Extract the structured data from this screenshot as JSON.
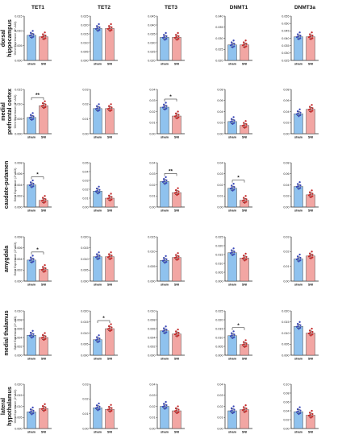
{
  "colors": {
    "sham": "#8fc2ee",
    "sni": "#f2a6a3",
    "sham_dot": "#3a48b8",
    "sni_dot": "#c42a2a",
    "axis": "#222222"
  },
  "figure": {
    "genes": [
      "TET1",
      "TET2",
      "TET3",
      "DNMT1",
      "DNMT3a"
    ],
    "regions": [
      {
        "lines": [
          "dorsal",
          "hippocampus"
        ],
        "ylabel": "Gene Expression (2^-ΔCt)"
      },
      {
        "lines": [
          "medial",
          "prefrontal cortex"
        ],
        "ylabel": "Gene Expression (2^-ΔCt)"
      },
      {
        "lines": [
          "caudate-putamen"
        ],
        "ylabel": "Gene Expression (2^-ΔCt)"
      },
      {
        "lines": [
          "amygdala"
        ],
        "ylabel": "Gene Expression (2^-ΔCt)"
      },
      {
        "lines": [
          "medial thalamus"
        ],
        "ylabel": "Gene Expression (2^-ΔCt)"
      },
      {
        "lines": [
          "lateral",
          "hypothalamus"
        ],
        "ylabel": "Gene Expression (2^-ΔCt)"
      }
    ],
    "groups": [
      "sham",
      "SNI"
    ]
  },
  "chart_data": [
    {
      "type": "bar",
      "region": "dorsal hippocampus",
      "gene": "TET1",
      "categories": [
        "sham",
        "SNI"
      ],
      "values": [
        0.0085,
        0.008
      ],
      "ylim": [
        0,
        0.015
      ],
      "yticks": [
        "0.000",
        "0.005",
        "0.010",
        "0.015"
      ]
    },
    {
      "type": "bar",
      "region": "dorsal hippocampus",
      "gene": "TET2",
      "categories": [
        "sham",
        "SNI"
      ],
      "values": [
        0.018,
        0.018
      ],
      "ylim": [
        0,
        0.025
      ],
      "yticks": [
        "0.000",
        "0.005",
        "0.010",
        "0.015",
        "0.020",
        "0.025"
      ]
    },
    {
      "type": "bar",
      "region": "dorsal hippocampus",
      "gene": "TET3",
      "categories": [
        "sham",
        "SNI"
      ],
      "values": [
        0.033,
        0.033
      ],
      "ylim": [
        0.02,
        0.045
      ],
      "yticks": [
        "0.020",
        "0.025",
        "0.030",
        "0.035",
        "0.040",
        "0.045"
      ]
    },
    {
      "type": "bar",
      "region": "dorsal hippocampus",
      "gene": "DNMT1",
      "categories": [
        "sham",
        "SNI"
      ],
      "values": [
        0.027,
        0.027
      ],
      "ylim": [
        0.02,
        0.04
      ],
      "yticks": [
        "0.020",
        "0.025",
        "0.030",
        "0.035",
        "0.040"
      ]
    },
    {
      "type": "bar",
      "region": "dorsal hippocampus",
      "gene": "DNMT3a",
      "categories": [
        "sham",
        "SNI"
      ],
      "values": [
        0.041,
        0.041
      ],
      "ylim": [
        0.025,
        0.055
      ],
      "yticks": [
        "0.025",
        "0.030",
        "0.035",
        "0.040",
        "0.045",
        "0.050",
        "0.055"
      ]
    },
    {
      "type": "bar",
      "region": "medial prefrontal cortex",
      "gene": "TET1",
      "categories": [
        "sham",
        "SNI"
      ],
      "values": [
        0.0055,
        0.0095
      ],
      "ylim": [
        0,
        0.015
      ],
      "yticks": [
        "0.000",
        "0.005",
        "0.010",
        "0.015"
      ],
      "sig": "**"
    },
    {
      "type": "bar",
      "region": "medial prefrontal cortex",
      "gene": "TET2",
      "categories": [
        "sham",
        "SNI"
      ],
      "values": [
        0.017,
        0.017
      ],
      "ylim": [
        0,
        0.03
      ],
      "yticks": [
        "0.00",
        "0.01",
        "0.02",
        "0.03"
      ]
    },
    {
      "type": "bar",
      "region": "medial prefrontal cortex",
      "gene": "TET3",
      "categories": [
        "sham",
        "SNI"
      ],
      "values": [
        0.024,
        0.016
      ],
      "ylim": [
        0,
        0.04
      ],
      "yticks": [
        "0.00",
        "0.01",
        "0.02",
        "0.03",
        "0.04"
      ],
      "sig": "*"
    },
    {
      "type": "bar",
      "region": "medial prefrontal cortex",
      "gene": "DNMT1",
      "categories": [
        "sham",
        "SNI"
      ],
      "values": [
        0.022,
        0.015
      ],
      "ylim": [
        0,
        0.08
      ],
      "yticks": [
        "0.00",
        "0.02",
        "0.04",
        "0.06",
        "0.08"
      ]
    },
    {
      "type": "bar",
      "region": "medial prefrontal cortex",
      "gene": "DNMT3a",
      "categories": [
        "sham",
        "SNI"
      ],
      "values": [
        0.036,
        0.044
      ],
      "ylim": [
        0,
        0.08
      ],
      "yticks": [
        "0.00",
        "0.02",
        "0.04",
        "0.06",
        "0.08"
      ]
    },
    {
      "type": "bar",
      "region": "caudate-putamen",
      "gene": "TET1",
      "categories": [
        "sham",
        "SNI"
      ],
      "values": [
        0.004,
        0.0012
      ],
      "ylim": [
        0,
        0.008
      ],
      "yticks": [
        "0.000",
        "0.002",
        "0.004",
        "0.006",
        "0.008"
      ],
      "sig": "*"
    },
    {
      "type": "bar",
      "region": "caudate-putamen",
      "gene": "TET2",
      "categories": [
        "sham",
        "SNI"
      ],
      "values": [
        0.018,
        0.01
      ],
      "ylim": [
        0,
        0.05
      ],
      "yticks": [
        "0.00",
        "0.01",
        "0.02",
        "0.03",
        "0.04",
        "0.05"
      ]
    },
    {
      "type": "bar",
      "region": "caudate-putamen",
      "gene": "TET3",
      "categories": [
        "sham",
        "SNI"
      ],
      "values": [
        0.023,
        0.013
      ],
      "ylim": [
        0,
        0.04
      ],
      "yticks": [
        "0.00",
        "0.01",
        "0.02",
        "0.03",
        "0.04"
      ],
      "sig": "**"
    },
    {
      "type": "bar",
      "region": "caudate-putamen",
      "gene": "DNMT1",
      "categories": [
        "sham",
        "SNI"
      ],
      "values": [
        0.017,
        0.006
      ],
      "ylim": [
        0,
        0.04
      ],
      "yticks": [
        "0.00",
        "0.01",
        "0.02",
        "0.03",
        "0.04"
      ],
      "sig": "*"
    },
    {
      "type": "bar",
      "region": "caudate-putamen",
      "gene": "DNMT3a",
      "categories": [
        "sham",
        "SNI"
      ],
      "values": [
        0.037,
        0.022
      ],
      "ylim": [
        0,
        0.08
      ],
      "yticks": [
        "0.00",
        "0.02",
        "0.04",
        "0.06",
        "0.08"
      ]
    },
    {
      "type": "bar",
      "region": "amygdala",
      "gene": "TET1",
      "categories": [
        "sham",
        "SNI"
      ],
      "values": [
        0.0038,
        0.0021
      ],
      "ylim": [
        0,
        0.008
      ],
      "yticks": [
        "0.000",
        "0.002",
        "0.004",
        "0.006",
        "0.008"
      ],
      "sig": "*"
    },
    {
      "type": "bar",
      "region": "amygdala",
      "gene": "TET2",
      "categories": [
        "sham",
        "SNI"
      ],
      "values": [
        0.011,
        0.011
      ],
      "ylim": [
        0,
        0.02
      ],
      "yticks": [
        "0.000",
        "0.005",
        "0.010",
        "0.015",
        "0.020"
      ]
    },
    {
      "type": "bar",
      "region": "amygdala",
      "gene": "TET3",
      "categories": [
        "sham",
        "SNI"
      ],
      "values": [
        0.007,
        0.008
      ],
      "ylim": [
        0,
        0.015
      ],
      "yticks": [
        "0.000",
        "0.005",
        "0.010",
        "0.015"
      ]
    },
    {
      "type": "bar",
      "region": "amygdala",
      "gene": "DNMT1",
      "categories": [
        "sham",
        "SNI"
      ],
      "values": [
        0.016,
        0.013
      ],
      "ylim": [
        0,
        0.025
      ],
      "yticks": [
        "0.000",
        "0.005",
        "0.010",
        "0.015",
        "0.020",
        "0.025"
      ]
    },
    {
      "type": "bar",
      "region": "amygdala",
      "gene": "DNMT3a",
      "categories": [
        "sham",
        "SNI"
      ],
      "values": [
        0.015,
        0.017
      ],
      "ylim": [
        0,
        0.03
      ],
      "yticks": [
        "0.00",
        "0.01",
        "0.02",
        "0.03"
      ]
    },
    {
      "type": "bar",
      "region": "medial thalamus",
      "gene": "TET1",
      "categories": [
        "sham",
        "SNI"
      ],
      "values": [
        0.0045,
        0.004
      ],
      "ylim": [
        0,
        0.01
      ],
      "yticks": [
        "0.000",
        "0.002",
        "0.004",
        "0.006",
        "0.008",
        "0.010"
      ]
    },
    {
      "type": "bar",
      "region": "medial thalamus",
      "gene": "TET2",
      "categories": [
        "sham",
        "SNI"
      ],
      "values": [
        0.007,
        0.012
      ],
      "ylim": [
        0,
        0.02
      ],
      "yticks": [
        "0.000",
        "0.005",
        "0.010",
        "0.015",
        "0.020"
      ],
      "sig": "*"
    },
    {
      "type": "bar",
      "region": "medial thalamus",
      "gene": "TET3",
      "categories": [
        "sham",
        "SNI"
      ],
      "values": [
        0.0055,
        0.0048
      ],
      "ylim": [
        0,
        0.01
      ],
      "yticks": [
        "0.000",
        "0.002",
        "0.004",
        "0.006",
        "0.008",
        "0.010"
      ]
    },
    {
      "type": "bar",
      "region": "medial thalamus",
      "gene": "DNMT1",
      "categories": [
        "sham",
        "SNI"
      ],
      "values": [
        0.011,
        0.006
      ],
      "ylim": [
        0,
        0.025
      ],
      "yticks": [
        "0.000",
        "0.005",
        "0.010",
        "0.015",
        "0.020",
        "0.025"
      ],
      "sig": "*"
    },
    {
      "type": "bar",
      "region": "medial thalamus",
      "gene": "DNMT3a",
      "categories": [
        "sham",
        "SNI"
      ],
      "values": [
        0.013,
        0.01
      ],
      "ylim": [
        0,
        0.02
      ],
      "yticks": [
        "0.000",
        "0.005",
        "0.010",
        "0.015",
        "0.020"
      ]
    },
    {
      "type": "bar",
      "region": "lateral hypothalamus",
      "gene": "TET1",
      "categories": [
        "sham",
        "SNI"
      ],
      "values": [
        0.0075,
        0.009
      ],
      "ylim": [
        0,
        0.02
      ],
      "yticks": [
        "0.000",
        "0.005",
        "0.010",
        "0.015",
        "0.020"
      ]
    },
    {
      "type": "bar",
      "region": "lateral hypothalamus",
      "gene": "TET2",
      "categories": [
        "sham",
        "SNI"
      ],
      "values": [
        0.014,
        0.013
      ],
      "ylim": [
        0,
        0.03
      ],
      "yticks": [
        "0.00",
        "0.01",
        "0.02",
        "0.03"
      ]
    },
    {
      "type": "bar",
      "region": "lateral hypothalamus",
      "gene": "TET3",
      "categories": [
        "sham",
        "SNI"
      ],
      "values": [
        0.02,
        0.016
      ],
      "ylim": [
        0,
        0.04
      ],
      "yticks": [
        "0.00",
        "0.01",
        "0.02",
        "0.03",
        "0.04"
      ]
    },
    {
      "type": "bar",
      "region": "lateral hypothalamus",
      "gene": "DNMT1",
      "categories": [
        "sham",
        "SNI"
      ],
      "values": [
        0.016,
        0.017
      ],
      "ylim": [
        0,
        0.04
      ],
      "yticks": [
        "0.00",
        "0.01",
        "0.02",
        "0.03",
        "0.04"
      ]
    },
    {
      "type": "bar",
      "region": "lateral hypothalamus",
      "gene": "DNMT3a",
      "categories": [
        "sham",
        "SNI"
      ],
      "values": [
        0.038,
        0.03
      ],
      "ylim": [
        0,
        0.1
      ],
      "yticks": [
        "0.00",
        "0.02",
        "0.04",
        "0.06",
        "0.08",
        "0.10"
      ]
    }
  ]
}
